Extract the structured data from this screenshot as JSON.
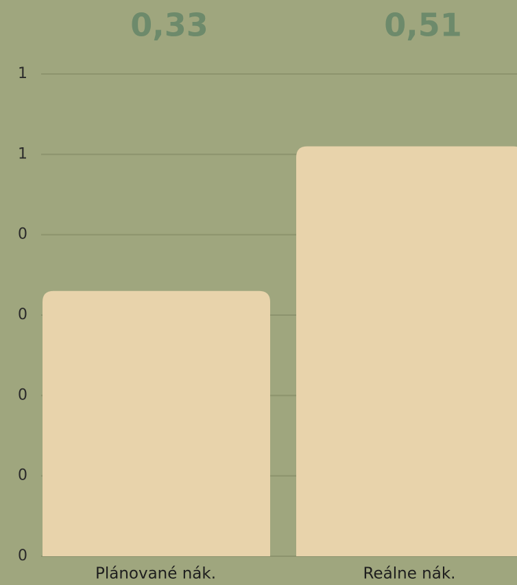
{
  "chart_data": {
    "type": "bar",
    "categories": [
      "Plánované nák.",
      "Reálne nák."
    ],
    "values": [
      0.33,
      0.51
    ],
    "value_labels": [
      "0,33",
      "0,51"
    ],
    "color": "#e8d3ab",
    "ylim": [
      0,
      0.6
    ],
    "yticks": [
      0,
      {
        "value": 0.1,
        "label": "0"
      },
      {
        "value": 0.2,
        "label": "0"
      },
      {
        "value": 0.3,
        "label": "0"
      },
      {
        "value": 0.4,
        "label": "0"
      },
      {
        "value": 0.5,
        "label": "1"
      },
      {
        "value": 0.6,
        "label": "1"
      }
    ],
    "grid": true
  }
}
